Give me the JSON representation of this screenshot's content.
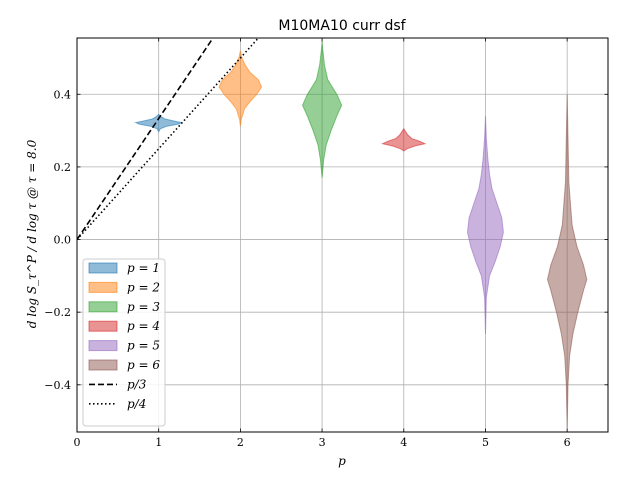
{
  "chart_data": {
    "type": "violin",
    "title": "M10MA10 curr dsf",
    "xlabel": "p",
    "ylabel": "d log S_τ^P / d log τ @ τ = 8.0",
    "xlim": [
      0,
      6.5
    ],
    "ylim": [
      -0.53,
      0.555
    ],
    "xticks": [
      "0",
      "1",
      "2",
      "3",
      "4",
      "5",
      "6"
    ],
    "yticks": [
      "−0.4",
      "−0.2",
      "0.0",
      "0.2",
      "0.4"
    ],
    "ytick_values": [
      -0.4,
      -0.2,
      0.0,
      0.2,
      0.4
    ],
    "grid": true,
    "legend_position": "lower-left",
    "series": [
      {
        "name": "p = 1",
        "x": 1,
        "color": "#1f77b4",
        "profile": [
          [
            0.297,
            0.0
          ],
          [
            0.305,
            0.02
          ],
          [
            0.312,
            0.1
          ],
          [
            0.318,
            0.24
          ],
          [
            0.322,
            0.28
          ],
          [
            0.326,
            0.2
          ],
          [
            0.332,
            0.08
          ],
          [
            0.338,
            0.03
          ],
          [
            0.345,
            0.0
          ]
        ]
      },
      {
        "name": "p = 2",
        "x": 2,
        "color": "#ff7f0e",
        "profile": [
          [
            0.312,
            0.0
          ],
          [
            0.33,
            0.01
          ],
          [
            0.36,
            0.05
          ],
          [
            0.38,
            0.12
          ],
          [
            0.4,
            0.2
          ],
          [
            0.42,
            0.26
          ],
          [
            0.44,
            0.22
          ],
          [
            0.46,
            0.12
          ],
          [
            0.48,
            0.06
          ],
          [
            0.5,
            0.02
          ],
          [
            0.52,
            0.0
          ]
        ]
      },
      {
        "name": "p = 3",
        "x": 3,
        "color": "#2ca02c",
        "profile": [
          [
            0.17,
            0.0
          ],
          [
            0.22,
            0.02
          ],
          [
            0.26,
            0.05
          ],
          [
            0.3,
            0.11
          ],
          [
            0.34,
            0.18
          ],
          [
            0.37,
            0.24
          ],
          [
            0.4,
            0.18
          ],
          [
            0.44,
            0.07
          ],
          [
            0.48,
            0.03
          ],
          [
            0.52,
            0.01
          ],
          [
            0.545,
            0.0
          ]
        ]
      },
      {
        "name": "p = 4",
        "x": 4,
        "color": "#d62728",
        "profile": [
          [
            0.244,
            0.0
          ],
          [
            0.25,
            0.04
          ],
          [
            0.258,
            0.14
          ],
          [
            0.264,
            0.26
          ],
          [
            0.27,
            0.2
          ],
          [
            0.278,
            0.1
          ],
          [
            0.288,
            0.05
          ],
          [
            0.298,
            0.02
          ],
          [
            0.305,
            0.0
          ]
        ]
      },
      {
        "name": "p = 5",
        "x": 5,
        "color": "#9467bd",
        "profile": [
          [
            -0.26,
            0.0
          ],
          [
            -0.16,
            0.01
          ],
          [
            -0.1,
            0.05
          ],
          [
            -0.06,
            0.12
          ],
          [
            -0.02,
            0.18
          ],
          [
            0.02,
            0.22
          ],
          [
            0.06,
            0.2
          ],
          [
            0.1,
            0.14
          ],
          [
            0.14,
            0.08
          ],
          [
            0.18,
            0.05
          ],
          [
            0.22,
            0.03
          ],
          [
            0.28,
            0.01
          ],
          [
            0.34,
            0.0
          ]
        ]
      },
      {
        "name": "p = 6",
        "x": 6,
        "color": "#8c564b",
        "profile": [
          [
            -0.52,
            0.0
          ],
          [
            -0.4,
            0.01
          ],
          [
            -0.32,
            0.03
          ],
          [
            -0.26,
            0.07
          ],
          [
            -0.2,
            0.13
          ],
          [
            -0.14,
            0.2
          ],
          [
            -0.11,
            0.24
          ],
          [
            -0.07,
            0.2
          ],
          [
            -0.02,
            0.12
          ],
          [
            0.04,
            0.06
          ],
          [
            0.1,
            0.04
          ],
          [
            0.16,
            0.02
          ],
          [
            0.28,
            0.01
          ],
          [
            0.4,
            0.0
          ]
        ]
      }
    ],
    "lines": [
      {
        "name": "p/3",
        "style": "dashed",
        "slope": 0.3333
      },
      {
        "name": "p/4",
        "style": "dotted",
        "slope": 0.25
      }
    ]
  }
}
